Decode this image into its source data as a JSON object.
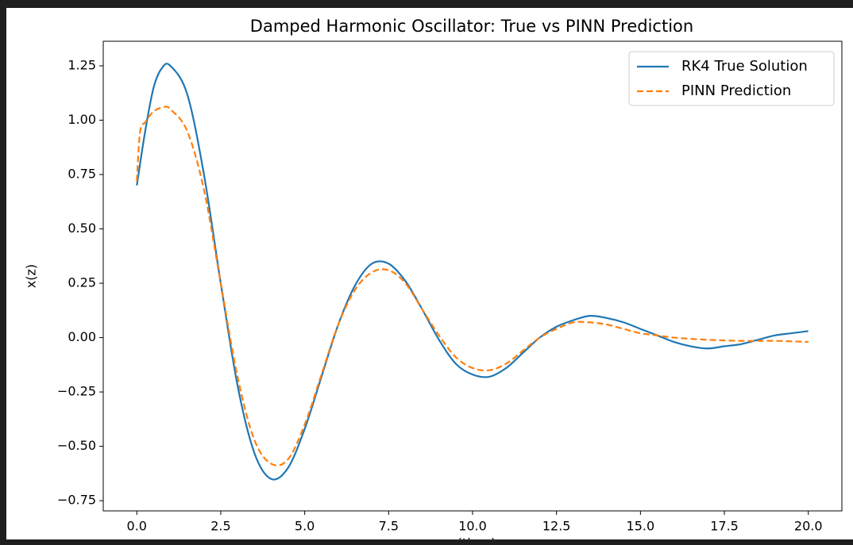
{
  "chart_data": {
    "type": "line",
    "title": "Damped Harmonic Oscillator: True vs PINN Prediction",
    "xlabel": "(time)",
    "ylabel": "x(z)",
    "xlim": [
      -1.0,
      21.0
    ],
    "ylim": [
      -0.797,
      1.363
    ],
    "xticks": [
      {
        "value": 0,
        "label": "0.0"
      },
      {
        "value": 2.5,
        "label": "2.5"
      },
      {
        "value": 5,
        "label": "5.0"
      },
      {
        "value": 7.5,
        "label": "7.5"
      },
      {
        "value": 10,
        "label": "10.0"
      },
      {
        "value": 12.5,
        "label": "12.5"
      },
      {
        "value": 15,
        "label": "15.0"
      },
      {
        "value": 17.5,
        "label": "17.5"
      },
      {
        "value": 20,
        "label": "20.0"
      }
    ],
    "yticks": [
      {
        "value": -0.75,
        "label": "−0.75"
      },
      {
        "value": -0.5,
        "label": "−0.50"
      },
      {
        "value": -0.25,
        "label": "−0.25"
      },
      {
        "value": 0,
        "label": "0.00"
      },
      {
        "value": 0.25,
        "label": "0.25"
      },
      {
        "value": 0.5,
        "label": "0.50"
      },
      {
        "value": 0.75,
        "label": "0.75"
      },
      {
        "value": 1.0,
        "label": "1.00"
      },
      {
        "value": 1.25,
        "label": "1.25"
      }
    ],
    "legend": "upper right",
    "series": [
      {
        "name": "RK4 True Solution",
        "color": "#1f77b4",
        "dash": "solid",
        "x": [
          0,
          0.25,
          0.5,
          0.75,
          1.0,
          1.5,
          2.0,
          2.5,
          3.0,
          3.5,
          4.0,
          4.5,
          5.0,
          5.5,
          6.0,
          6.5,
          7.0,
          7.5,
          8.0,
          8.5,
          9.0,
          9.5,
          10.0,
          10.5,
          11.0,
          11.5,
          12.0,
          12.5,
          13.0,
          13.5,
          14.0,
          14.5,
          15.0,
          15.5,
          16.0,
          16.5,
          17.0,
          17.5,
          18.0,
          18.5,
          19.0,
          19.5,
          20.0
        ],
        "values": [
          0.7,
          0.95,
          1.15,
          1.24,
          1.25,
          1.12,
          0.75,
          0.25,
          -0.22,
          -0.53,
          -0.65,
          -0.6,
          -0.42,
          -0.18,
          0.06,
          0.24,
          0.34,
          0.34,
          0.26,
          0.13,
          -0.01,
          -0.12,
          -0.17,
          -0.18,
          -0.14,
          -0.07,
          0.0,
          0.05,
          0.08,
          0.1,
          0.09,
          0.07,
          0.04,
          0.01,
          -0.02,
          -0.04,
          -0.05,
          -0.04,
          -0.03,
          -0.01,
          0.01,
          0.02,
          0.03
        ]
      },
      {
        "name": "PINN Prediction",
        "color": "#ff7f0e",
        "dash": "dashed",
        "x": [
          0,
          0.1,
          0.25,
          0.5,
          0.8,
          1.0,
          1.5,
          2.0,
          2.5,
          3.0,
          3.5,
          4.0,
          4.5,
          5.0,
          5.5,
          6.0,
          6.5,
          7.0,
          7.5,
          8.0,
          8.5,
          9.0,
          9.5,
          10.0,
          10.5,
          11.0,
          11.5,
          12.0,
          12.5,
          13.0,
          13.5,
          14.0,
          14.5,
          15.0,
          15.5,
          16.0,
          17.0,
          18.0,
          19.0,
          20.0
        ],
        "values": [
          0.72,
          0.95,
          0.99,
          1.04,
          1.06,
          1.05,
          0.95,
          0.68,
          0.25,
          -0.18,
          -0.47,
          -0.58,
          -0.56,
          -0.4,
          -0.17,
          0.06,
          0.22,
          0.3,
          0.31,
          0.25,
          0.13,
          0.01,
          -0.09,
          -0.14,
          -0.15,
          -0.12,
          -0.06,
          0.0,
          0.04,
          0.07,
          0.07,
          0.06,
          0.04,
          0.02,
          0.01,
          0.0,
          -0.01,
          -0.015,
          -0.015,
          -0.02
        ]
      }
    ]
  }
}
